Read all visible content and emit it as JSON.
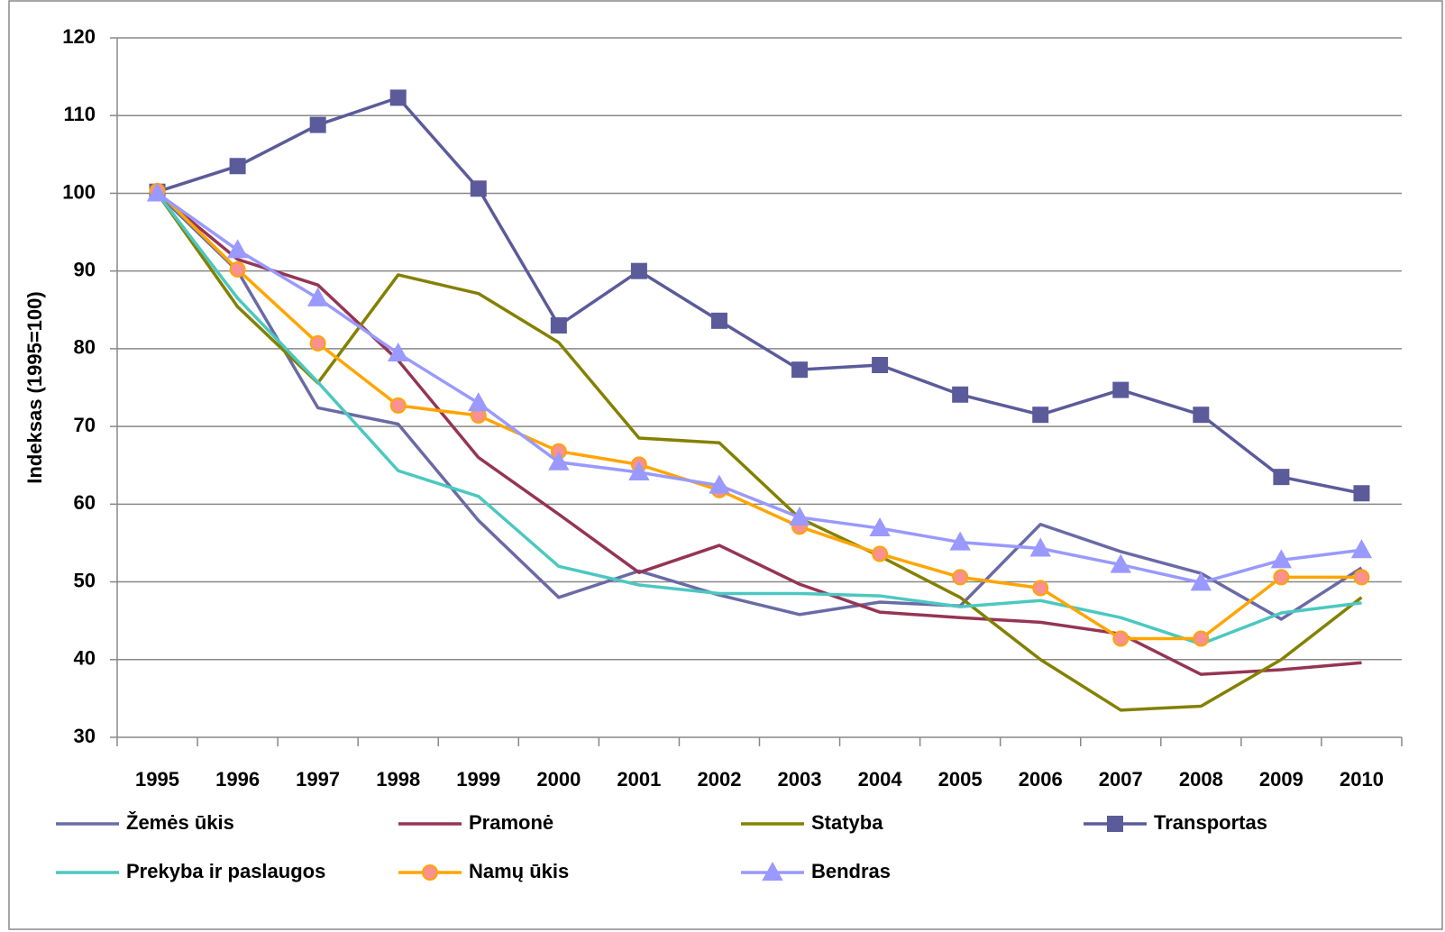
{
  "chart_data": {
    "type": "line",
    "y_label": "Indeksas (1995=100)",
    "categories": [
      "1995",
      "1996",
      "1997",
      "1998",
      "1999",
      "2000",
      "2001",
      "2002",
      "2003",
      "2004",
      "2005",
      "2006",
      "2007",
      "2008",
      "2009",
      "2010"
    ],
    "series": [
      {
        "name": "Žemės ūkis",
        "color": "#6a6aa6",
        "values": [
          100,
          90,
          72.4,
          70.3,
          57.9,
          48,
          51.4,
          48.3,
          45.8,
          47.4,
          46.9,
          57.4,
          53.9,
          51.1,
          45.2,
          51.8
        ]
      },
      {
        "name": "Pramonė",
        "color": "#953553",
        "values": [
          100,
          91.5,
          88.2,
          78.5,
          66,
          58.7,
          51.2,
          54.7,
          49.7,
          46.1,
          45.4,
          44.8,
          43.3,
          38.1,
          38.7,
          39.6
        ]
      },
      {
        "name": "Statyba",
        "color": "#848000",
        "values": [
          100,
          85.4,
          75.6,
          89.5,
          87.1,
          80.8,
          68.5,
          67.9,
          58.2,
          53.3,
          48,
          40,
          33.5,
          34,
          40,
          48
        ]
      },
      {
        "name": "Transportas",
        "color": "#5b5b9b",
        "marker": "square",
        "values": [
          100.2,
          103.5,
          108.8,
          112.3,
          100.6,
          83,
          90,
          83.6,
          77.3,
          77.9,
          74.1,
          71.5,
          74.7,
          71.5,
          63.5,
          61.4
        ]
      },
      {
        "name": "Prekyba ir paslaugos",
        "color": "#4bc8c0",
        "values": [
          100,
          86.5,
          75.7,
          64.3,
          61,
          52,
          49.6,
          48.5,
          48.5,
          48.2,
          46.8,
          47.6,
          45.4,
          42,
          46,
          47.3
        ]
      },
      {
        "name": "Namų ūkis",
        "color": "#ffa500",
        "marker": "circle",
        "marker_fill": "#f8918f",
        "values": [
          100.3,
          90.2,
          80.7,
          72.7,
          71.4,
          66.8,
          65.1,
          61.8,
          57.1,
          53.6,
          50.6,
          49.2,
          42.7,
          42.7,
          50.6,
          50.6
        ]
      },
      {
        "name": "Bendras",
        "color": "#9999ff",
        "marker": "triangle",
        "values": [
          100,
          92.7,
          86.5,
          79.4,
          73,
          65.4,
          64.1,
          62.4,
          58.3,
          56.9,
          55.1,
          54.3,
          52.2,
          49.9,
          52.8,
          54.1
        ]
      }
    ],
    "ylim": [
      30,
      120
    ],
    "yticks": [
      30,
      40,
      50,
      60,
      70,
      80,
      90,
      100,
      110,
      120
    ],
    "grid": true,
    "legend": "bottom"
  }
}
